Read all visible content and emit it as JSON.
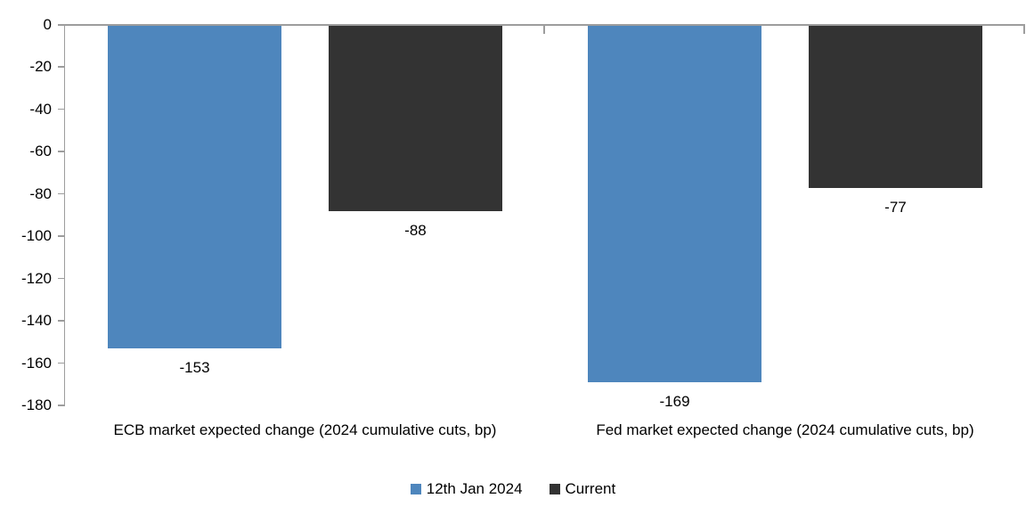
{
  "chart_data": {
    "type": "bar",
    "categories": [
      "ECB market expected change (2024 cumulative cuts, bp)",
      "Fed market expected change (2024 cumulative cuts, bp)"
    ],
    "series": [
      {
        "name": "12th Jan 2024",
        "color": "#4e86bd",
        "values": [
          -153,
          -169
        ]
      },
      {
        "name": "Current",
        "color": "#333333",
        "values": [
          -88,
          -77
        ]
      }
    ],
    "data_labels": [
      [
        "-153",
        "-169"
      ],
      [
        "-88",
        "-77"
      ]
    ],
    "title": "",
    "xlabel": "",
    "ylabel": "",
    "ylim": [
      0,
      -180
    ],
    "yticks": [
      0,
      -20,
      -40,
      -60,
      -80,
      -100,
      -120,
      -140,
      -160,
      -180
    ],
    "grid": false,
    "legend_position": "bottom",
    "axis_color": "#9d9d9d",
    "text_color": "#000000",
    "background_color": "#ffffff"
  }
}
